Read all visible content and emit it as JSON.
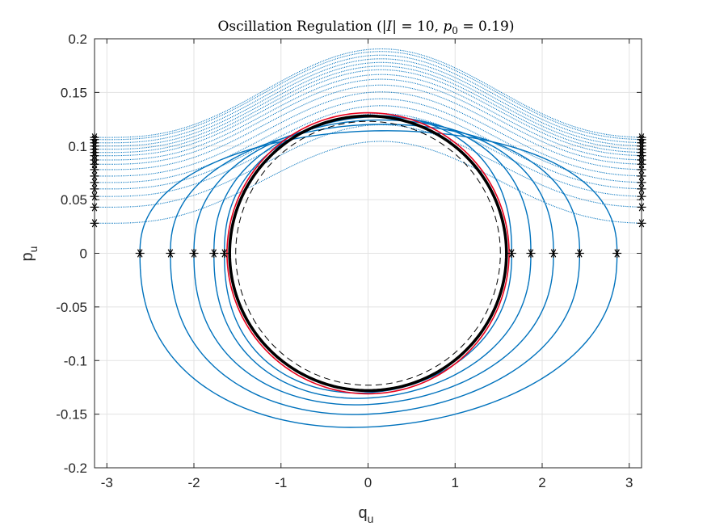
{
  "chart_data": {
    "type": "line",
    "title": {
      "prefix": "Oscillation Regulation (|",
      "var": "I",
      "mid": "| = 10, ",
      "p": "p",
      "sub": "0",
      "suffix": " = 0.19)"
    },
    "xlabel": {
      "base": "q",
      "sub": "u"
    },
    "ylabel": {
      "base": "p",
      "sub": "u"
    },
    "xlim": [
      -3.14159,
      3.14159
    ],
    "ylim": [
      -0.2,
      0.2
    ],
    "xticks": [
      -3,
      -2,
      -1,
      0,
      1,
      2,
      3
    ],
    "xtick_labels": [
      "-3",
      "-2",
      "-1",
      "0",
      "1",
      "2",
      "3"
    ],
    "yticks": [
      -0.2,
      -0.15,
      -0.1,
      -0.05,
      0,
      0.05,
      0.1,
      0.15,
      0.2
    ],
    "ytick_labels": [
      "-0.2",
      "-0.15",
      "-0.1",
      "-0.05",
      "0",
      "0.05",
      "0.1",
      "0.15",
      "0.2"
    ],
    "grid": true,
    "colors": {
      "trajectory": "#0072bd",
      "limit_cycle": "#000000",
      "reference_circle": "#000000",
      "red_circle": "#e8001c",
      "markers": "#000000",
      "grid": "#e3e3e3",
      "axes": "#262626"
    },
    "closed_orbits": [
      {
        "name": "orbit-1",
        "x_left": -2.62,
        "x_right": 2.86,
        "p_top": 0.114,
        "p_bottom": -0.162,
        "start_x": -2.62
      },
      {
        "name": "orbit-2",
        "x_left": -2.27,
        "x_right": 2.43,
        "p_top": 0.12,
        "p_bottom": -0.15,
        "start_x": -2.27
      },
      {
        "name": "orbit-3",
        "x_left": -2.0,
        "x_right": 2.13,
        "p_top": 0.124,
        "p_bottom": -0.141,
        "start_x": -2.0
      },
      {
        "name": "orbit-4",
        "x_left": -1.77,
        "x_right": 1.87,
        "p_top": 0.127,
        "p_bottom": -0.135,
        "start_x": -1.77
      },
      {
        "name": "orbit-5",
        "x_left": -1.65,
        "x_right": 1.65,
        "p_top": 0.128,
        "p_bottom": -0.13,
        "start_x": -1.65
      }
    ],
    "rotating_orbit_starts": [
      0.028,
      0.043,
      0.053,
      0.06,
      0.066,
      0.072,
      0.078,
      0.083,
      0.087,
      0.091,
      0.094,
      0.097,
      0.1,
      0.103,
      0.106,
      0.108
    ],
    "rotating_orbit_peak_gain": 0.083,
    "limit_cycle": {
      "q_amp": 1.59,
      "p_amp": 0.128
    },
    "red_circle": {
      "q_amp": 1.62,
      "p_amp": 0.131
    },
    "reference_circle": {
      "q_amp": 1.52,
      "p_amp": 0.123
    },
    "start_markers_axis": [
      -2.62,
      -2.27,
      -2.0,
      -1.77,
      -1.65,
      1.65,
      1.87,
      2.13,
      2.43,
      2.86
    ]
  }
}
